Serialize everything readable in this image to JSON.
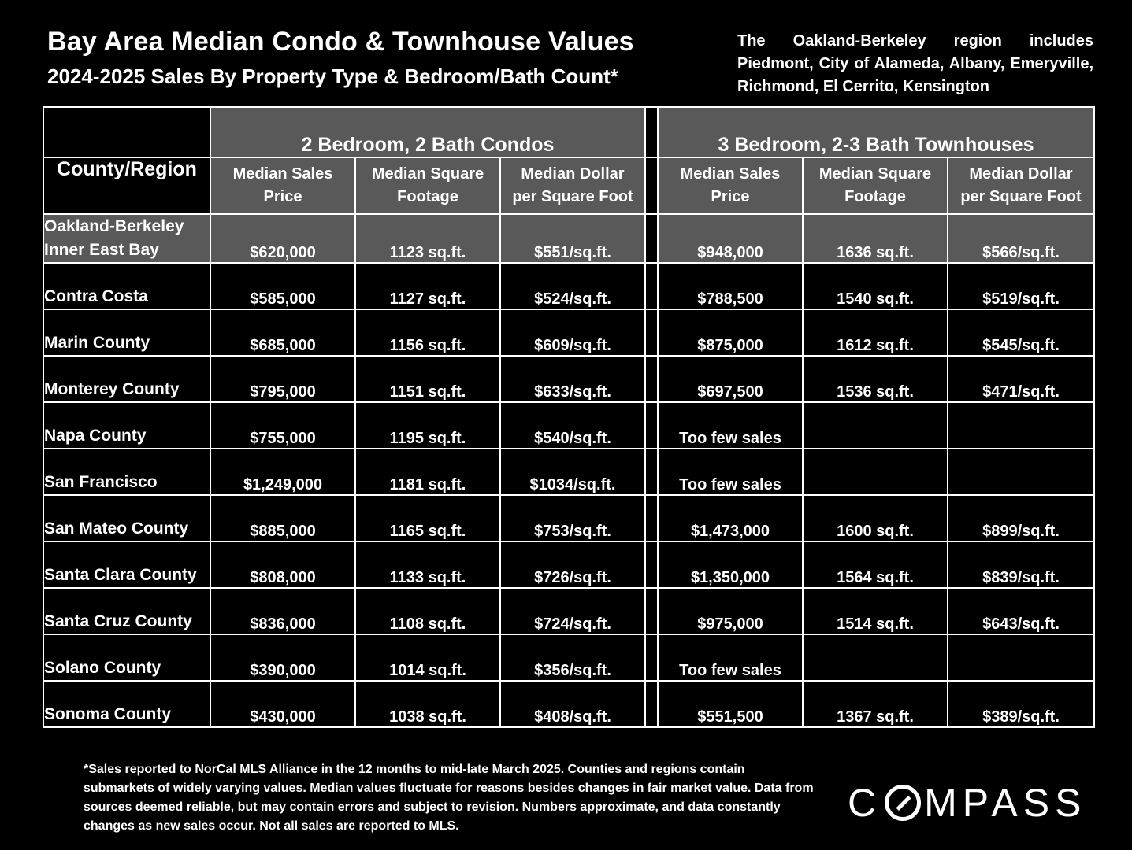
{
  "header": {
    "title": "Bay Area Median Condo & Townhouse Values",
    "subtitle": "2024-2025 Sales By Property Type & Bedroom/Bath Count*",
    "note": "The Oakland-Berkeley region includes Piedmont, City of Alameda, Albany, Emeryville, Richmond, El Cerrito, Kensington"
  },
  "table": {
    "region_header": "County/Region",
    "group_condos": "2 Bedroom, 2 Bath Condos",
    "group_townhouses": "3 Bedroom, 2-3 Bath Townhouses",
    "columns": {
      "c_price": [
        "Median Sales",
        "Price"
      ],
      "c_sqft": [
        "Median Square",
        "Footage"
      ],
      "c_ppsf": [
        "Median Dollar",
        "per Square Foot"
      ],
      "t_price": [
        "Median Sales",
        "Price"
      ],
      "t_sqft": [
        "Median Square",
        "Footage"
      ],
      "t_ppsf": [
        "Median Dollar",
        "per Square Foot"
      ]
    },
    "rows": [
      {
        "region": [
          "Oakland-Berkeley",
          "Inner East Bay"
        ],
        "c_price": "$620,000",
        "c_sqft": "1123 sq.ft.",
        "c_ppsf": "$551/sq.ft.",
        "t_price": "$948,000",
        "t_sqft": "1636 sq.ft.",
        "t_ppsf": "$566/sq.ft."
      },
      {
        "region": [
          "Contra Costa"
        ],
        "c_price": "$585,000",
        "c_sqft": "1127 sq.ft.",
        "c_ppsf": "$524/sq.ft.",
        "t_price": "$788,500",
        "t_sqft": "1540 sq.ft.",
        "t_ppsf": "$519/sq.ft."
      },
      {
        "region": [
          "Marin County"
        ],
        "c_price": "$685,000",
        "c_sqft": "1156 sq.ft.",
        "c_ppsf": "$609/sq.ft.",
        "t_price": "$875,000",
        "t_sqft": "1612 sq.ft.",
        "t_ppsf": "$545/sq.ft."
      },
      {
        "region": [
          "Monterey County"
        ],
        "c_price": "$795,000",
        "c_sqft": "1151 sq.ft.",
        "c_ppsf": "$633/sq.ft.",
        "t_price": "$697,500",
        "t_sqft": "1536 sq.ft.",
        "t_ppsf": "$471/sq.ft."
      },
      {
        "region": [
          "Napa County"
        ],
        "c_price": "$755,000",
        "c_sqft": "1195 sq.ft.",
        "c_ppsf": "$540/sq.ft.",
        "t_price": "Too few sales",
        "t_sqft": "",
        "t_ppsf": ""
      },
      {
        "region": [
          "San Francisco"
        ],
        "c_price": "$1,249,000",
        "c_sqft": "1181 sq.ft.",
        "c_ppsf": "$1034/sq.ft.",
        "t_price": "Too few sales",
        "t_sqft": "",
        "t_ppsf": ""
      },
      {
        "region": [
          "San Mateo County"
        ],
        "c_price": "$885,000",
        "c_sqft": "1165 sq.ft.",
        "c_ppsf": "$753/sq.ft.",
        "t_price": "$1,473,000",
        "t_sqft": "1600 sq.ft.",
        "t_ppsf": "$899/sq.ft."
      },
      {
        "region": [
          "Santa Clara County"
        ],
        "c_price": "$808,000",
        "c_sqft": "1133 sq.ft.",
        "c_ppsf": "$726/sq.ft.",
        "t_price": "$1,350,000",
        "t_sqft": "1564 sq.ft.",
        "t_ppsf": "$839/sq.ft."
      },
      {
        "region": [
          "Santa Cruz County"
        ],
        "c_price": "$836,000",
        "c_sqft": "1108 sq.ft.",
        "c_ppsf": "$724/sq.ft.",
        "t_price": "$975,000",
        "t_sqft": "1514 sq.ft.",
        "t_ppsf": "$643/sq.ft."
      },
      {
        "region": [
          "Solano County"
        ],
        "c_price": "$390,000",
        "c_sqft": "1014 sq.ft.",
        "c_ppsf": "$356/sq.ft.",
        "t_price": "Too few sales",
        "t_sqft": "",
        "t_ppsf": ""
      },
      {
        "region": [
          "Sonoma County"
        ],
        "c_price": "$430,000",
        "c_sqft": "1038 sq.ft.",
        "c_ppsf": "$408/sq.ft.",
        "t_price": "$551,500",
        "t_sqft": "1367 sq.ft.",
        "t_ppsf": "$389/sq.ft."
      }
    ]
  },
  "footnote": "*Sales reported to NorCal MLS Alliance in the 12 months to mid-late March 2025. Counties and regions contain submarkets of widely varying values. Median values fluctuate for reasons besides changes in fair market value. Data from sources deemed reliable, but may contain errors and subject to revision.  Numbers approximate, and data constantly changes as new sales occur. Not all sales are reported to MLS.",
  "logo": {
    "text": "COMPASS"
  },
  "colors": {
    "background": "#000000",
    "header_fill": "#595959",
    "text": "#ffffff"
  }
}
